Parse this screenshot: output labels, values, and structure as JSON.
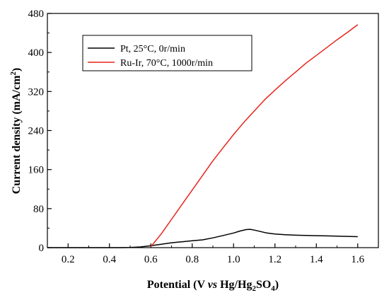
{
  "chart_data": {
    "type": "line",
    "xlabel": {
      "main": "Potential (V ",
      "italic": "vs",
      "rest": " Hg/Hg",
      "sub1": "2",
      "mid": "SO",
      "sub2": "4",
      "end": ")"
    },
    "ylabel": {
      "main": "Current density (mA/cm",
      "sup": "2",
      "end": ")"
    },
    "xlim": [
      0.1,
      1.7
    ],
    "ylim": [
      0,
      480
    ],
    "x_ticks": [
      "0.2",
      "0.4",
      "0.6",
      "0.8",
      "1.0",
      "1.2",
      "1.4",
      "1.6"
    ],
    "y_ticks": [
      "0",
      "80",
      "160",
      "240",
      "320",
      "400",
      "480"
    ],
    "legend_position": "top-left",
    "series": [
      {
        "name": "Pt, 25°C, 0r/min",
        "color": "#000000",
        "points": [
          [
            0.1,
            0
          ],
          [
            0.45,
            0
          ],
          [
            0.5,
            0.5
          ],
          [
            0.55,
            1.5
          ],
          [
            0.6,
            4
          ],
          [
            0.65,
            7
          ],
          [
            0.7,
            10
          ],
          [
            0.75,
            12
          ],
          [
            0.8,
            14
          ],
          [
            0.85,
            16
          ],
          [
            0.9,
            20
          ],
          [
            0.95,
            25
          ],
          [
            1.0,
            30
          ],
          [
            1.03,
            34
          ],
          [
            1.06,
            37
          ],
          [
            1.08,
            37.5
          ],
          [
            1.1,
            36
          ],
          [
            1.13,
            33
          ],
          [
            1.16,
            30
          ],
          [
            1.2,
            28
          ],
          [
            1.25,
            26.5
          ],
          [
            1.3,
            25.5
          ],
          [
            1.35,
            25
          ],
          [
            1.4,
            24.5
          ],
          [
            1.45,
            24
          ],
          [
            1.5,
            23.5
          ],
          [
            1.55,
            23
          ],
          [
            1.6,
            22.5
          ]
        ]
      },
      {
        "name": "Ru-Ir, 70°C, 1000r/min",
        "color": "#e8231c",
        "points": [
          [
            0.6,
            2
          ],
          [
            0.65,
            28
          ],
          [
            0.7,
            58
          ],
          [
            0.75,
            88
          ],
          [
            0.8,
            118
          ],
          [
            0.85,
            148
          ],
          [
            0.9,
            178
          ],
          [
            0.95,
            205
          ],
          [
            1.0,
            232
          ],
          [
            1.05,
            257
          ],
          [
            1.1,
            280
          ],
          [
            1.15,
            303
          ],
          [
            1.2,
            323
          ],
          [
            1.25,
            342
          ],
          [
            1.3,
            360
          ],
          [
            1.35,
            378
          ],
          [
            1.4,
            394
          ],
          [
            1.45,
            410
          ],
          [
            1.5,
            426
          ],
          [
            1.55,
            441
          ],
          [
            1.6,
            457
          ]
        ]
      }
    ]
  }
}
